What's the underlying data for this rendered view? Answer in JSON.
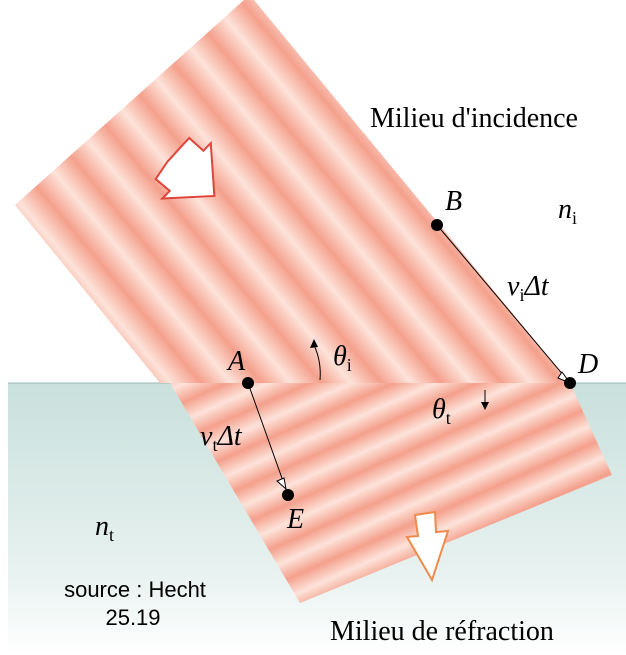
{
  "media": {
    "incidence": "Milieu d'incidence",
    "refraction": "Milieu de réfraction"
  },
  "points": {
    "A": "A",
    "B": "B",
    "D": "D",
    "E": "E"
  },
  "indices": {
    "incident": {
      "base": "n",
      "sub": "i"
    },
    "transmitted": {
      "base": "n",
      "sub": "t"
    }
  },
  "distances": {
    "incident": {
      "base": "v",
      "sub": "i",
      "rest": "Δt"
    },
    "transmitted": {
      "base": "v",
      "sub": "t",
      "rest": "Δt"
    }
  },
  "angles": {
    "incident": {
      "base": "θ",
      "sub": "i"
    },
    "transmitted": {
      "base": "θ",
      "sub": "t"
    }
  },
  "source": {
    "line1": "source : Hecht",
    "line2": "25.19"
  }
}
